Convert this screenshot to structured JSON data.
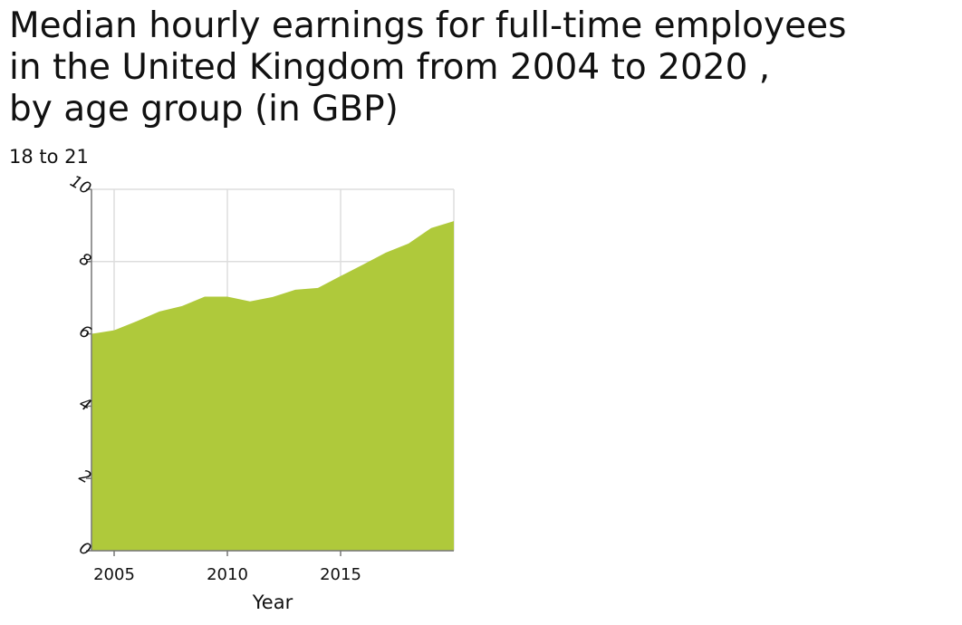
{
  "chart_data": {
    "type": "area",
    "title": "Median hourly earnings for full-time employees\nin the United Kingdom from 2004 to 2020 ,\nby age group (in GBP)",
    "ylabel": "18 to 21",
    "xlabel": "Year",
    "x": [
      2004,
      2005,
      2006,
      2007,
      2008,
      2009,
      2010,
      2011,
      2012,
      2013,
      2014,
      2015,
      2016,
      2017,
      2018,
      2019,
      2020
    ],
    "series": [
      {
        "name": "18 to 21",
        "values": [
          6.0,
          6.1,
          6.35,
          6.62,
          6.77,
          7.03,
          7.03,
          6.9,
          7.02,
          7.22,
          7.27,
          7.6,
          7.92,
          8.25,
          8.5,
          8.93,
          9.12
        ]
      }
    ],
    "xlim": [
      2004,
      2020
    ],
    "ylim": [
      0,
      10
    ],
    "x_ticks": [
      "2005",
      "2010",
      "2015"
    ],
    "y_ticks": [
      "0",
      "2",
      "4",
      "6",
      "8",
      "10"
    ],
    "grid": true,
    "fill_color": "#afc93b",
    "grid_color": "#dddddd",
    "axis_color": "#777777"
  }
}
